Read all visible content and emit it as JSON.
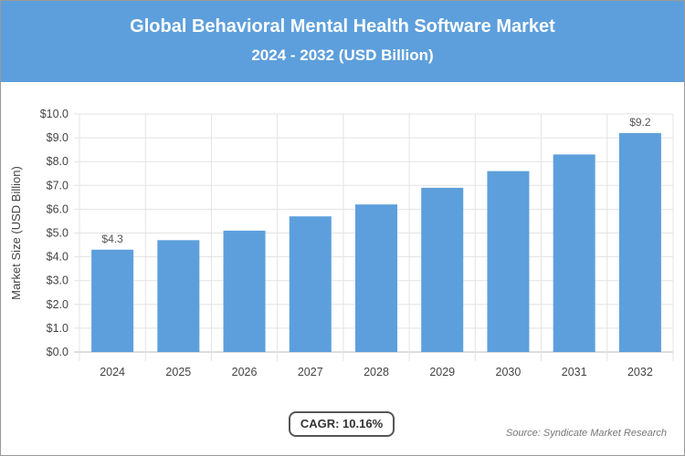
{
  "header": {
    "title": "Global Behavioral Mental Health Software Market",
    "subtitle": "2024 - 2032 (USD Billion)"
  },
  "chart_data": {
    "type": "bar",
    "title": "Global Behavioral Mental Health Software Market",
    "subtitle": "2024 - 2032 (USD Billion)",
    "ylabel": "Market Size (USD Billion)",
    "xlabel": "",
    "categories": [
      "2024",
      "2025",
      "2026",
      "2027",
      "2028",
      "2029",
      "2030",
      "2031",
      "2032"
    ],
    "values": [
      4.3,
      4.7,
      5.1,
      5.7,
      6.2,
      6.9,
      7.6,
      8.3,
      9.2
    ],
    "data_labels": {
      "0": "$4.3",
      "8": "$9.2"
    },
    "ylim": [
      0,
      10
    ],
    "yticks": [
      "$0.0",
      "$1.0",
      "$2.0",
      "$3.0",
      "$4.0",
      "$5.0",
      "$6.0",
      "$7.0",
      "$8.0",
      "$9.0",
      "$10.0"
    ],
    "grid": true,
    "bar_color": "#5d9fdc"
  },
  "footer": {
    "cagr": "CAGR: 10.16%",
    "source": "Source: Syndicate Market Research"
  }
}
